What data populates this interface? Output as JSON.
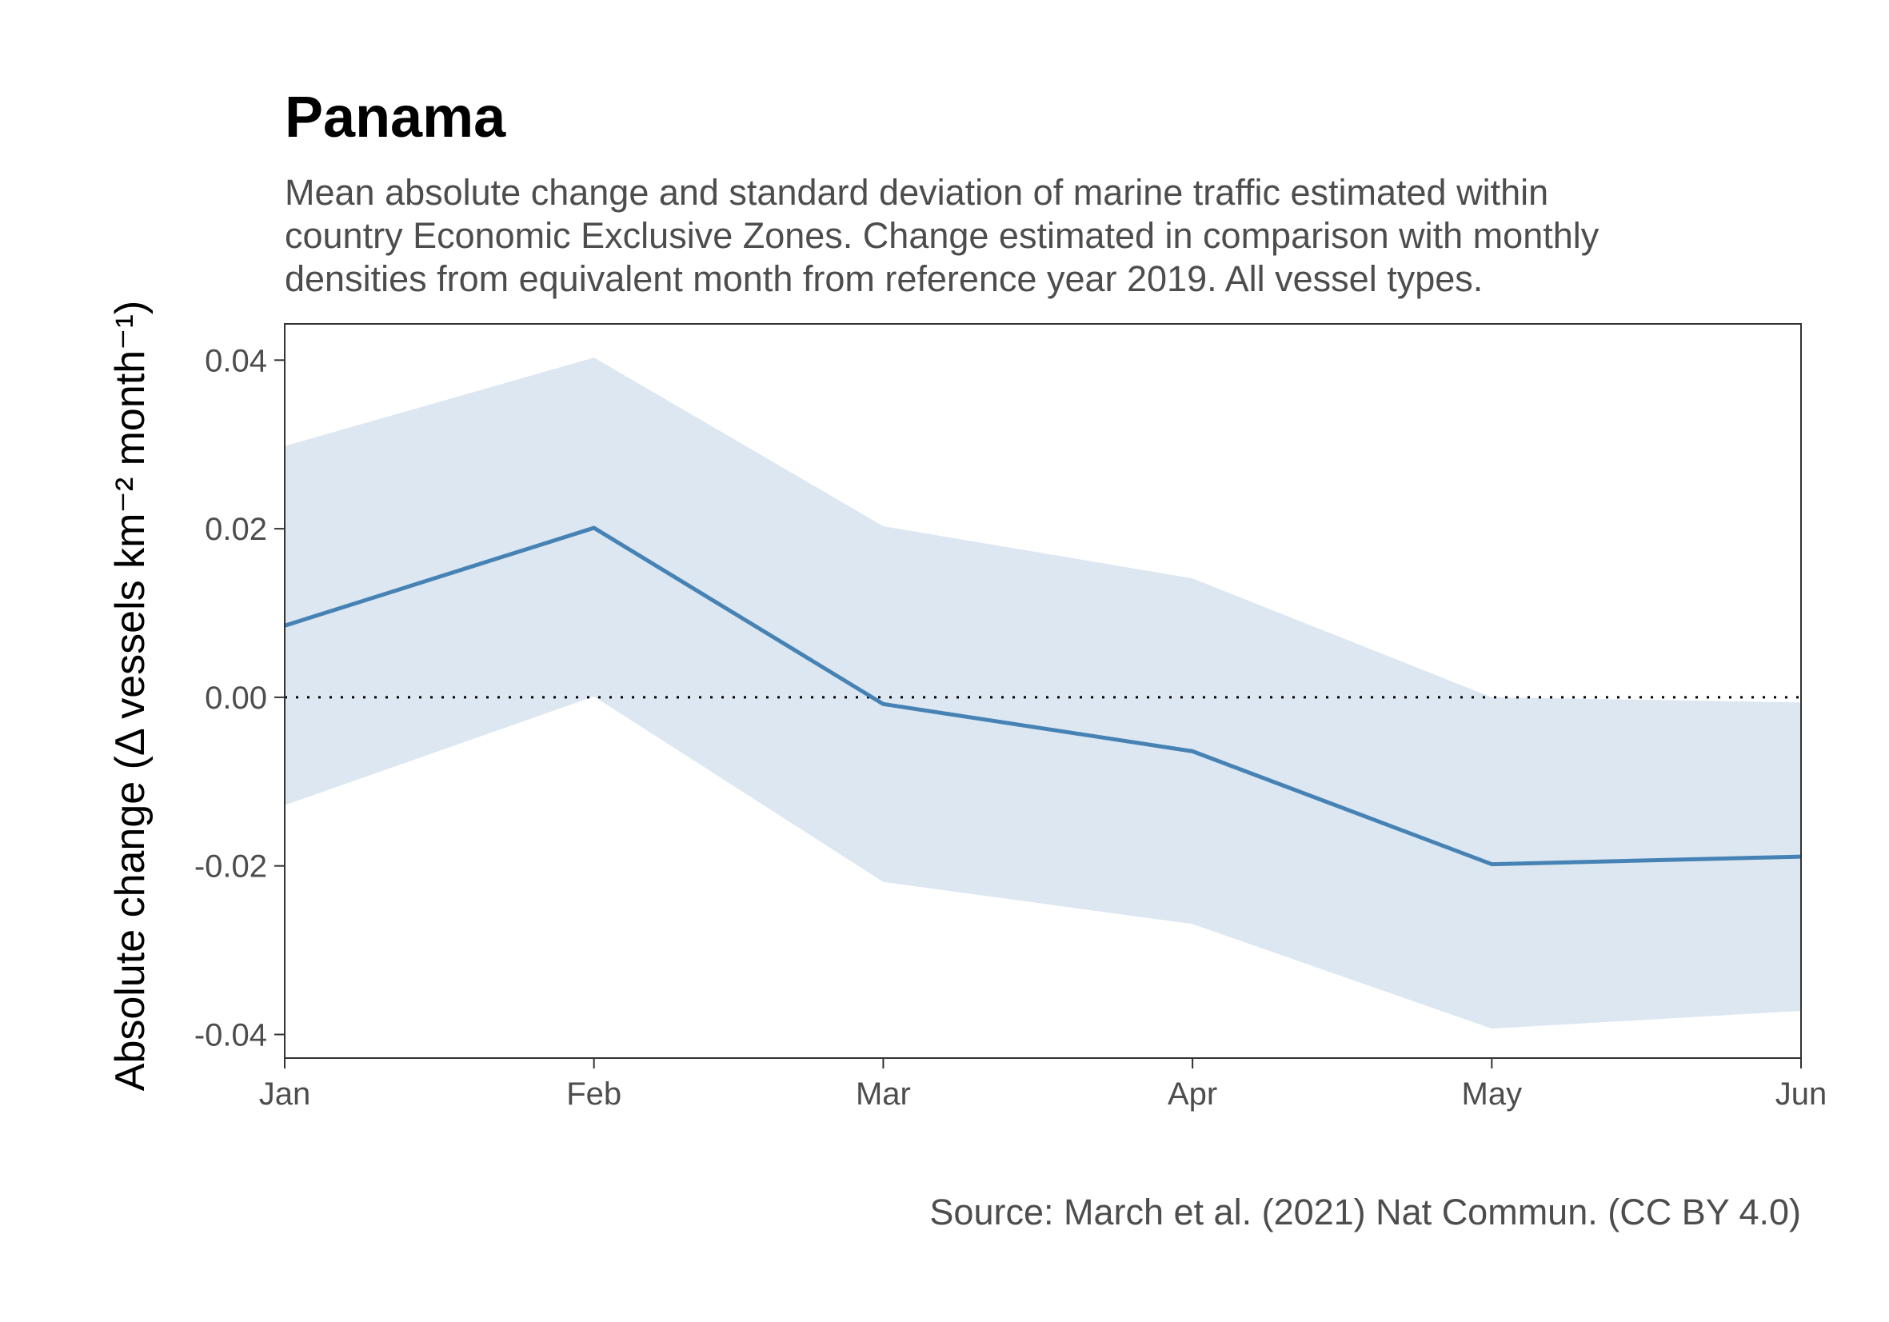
{
  "chart_data": {
    "type": "line",
    "title": "Panama",
    "subtitle_lines": [
      "Mean absolute change and standard deviation of marine traffic estimated within",
      "country Economic Exclusive Zones. Change estimated in comparison with monthly",
      "densities from equivalent month from reference year 2019. All vessel types."
    ],
    "ylabel": "Absolute change (Δ vessels km⁻² month⁻¹)",
    "categories": [
      "Jan",
      "Feb",
      "Mar",
      "Apr",
      "May",
      "Jun"
    ],
    "x_days": [
      0,
      31,
      60,
      91,
      121,
      152
    ],
    "series": [
      {
        "values": [
          0.0085,
          0.0201,
          -0.0008,
          -0.0064,
          -0.0198,
          -0.0189
        ],
        "upper": [
          0.0298,
          0.0403,
          0.0203,
          0.0141,
          0.0,
          -0.0006
        ],
        "lower": [
          -0.0128,
          0.0001,
          -0.0219,
          -0.0269,
          -0.0393,
          -0.0372
        ]
      }
    ],
    "yticks": [
      "0.04",
      "0.02",
      "0.00",
      "-0.02",
      "-0.04"
    ],
    "ytick_values": [
      0.04,
      0.02,
      0.0,
      -0.02,
      -0.04
    ],
    "ylim": [
      -0.0428,
      0.0443
    ],
    "xlim": [
      0,
      152
    ],
    "reference_line": 0,
    "grid": false,
    "caption": "Source: March et al. (2021) Nat Commun. (CC BY 4.0)",
    "colors": {
      "line": "#4682b4",
      "band": "#dce7f1",
      "axis": "#333333",
      "reference": "#000000"
    }
  }
}
